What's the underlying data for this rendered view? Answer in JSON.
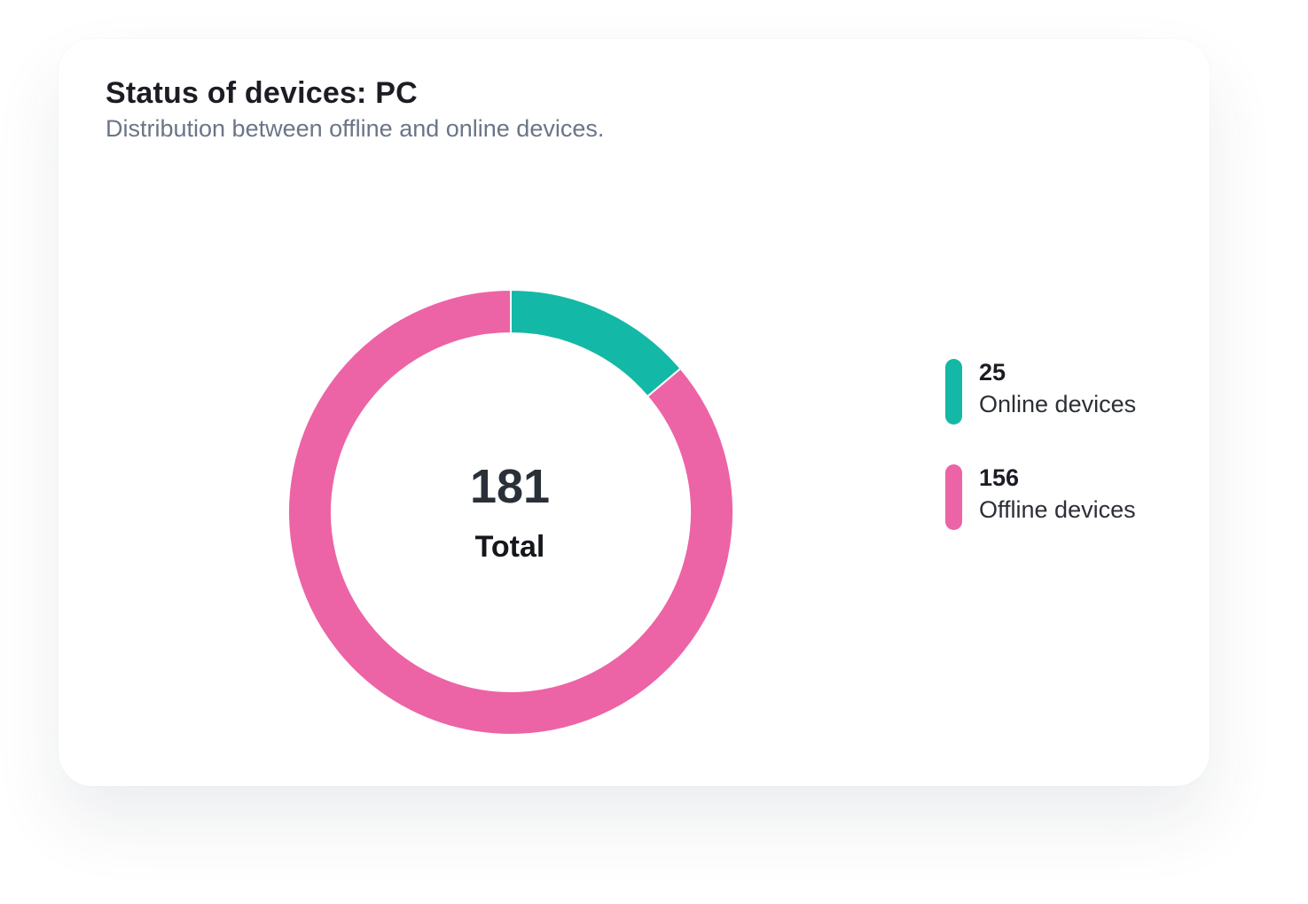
{
  "card": {
    "title": "Status of devices: PC",
    "subtitle": "Distribution between offline and online devices."
  },
  "center": {
    "total": "181",
    "label": "Total"
  },
  "legend": [
    {
      "value": "25",
      "label": "Online devices",
      "color": "#14b8a6"
    },
    {
      "value": "156",
      "label": "Offline devices",
      "color": "#ec64a5"
    }
  ],
  "chart_data": {
    "type": "pie",
    "variant": "donut",
    "title": "Status of devices: PC",
    "subtitle": "Distribution between offline and online devices.",
    "categories": [
      "Online devices",
      "Offline devices"
    ],
    "values": [
      25,
      156
    ],
    "colors": [
      "#14b8a6",
      "#ec64a5"
    ],
    "total": 181,
    "total_label": "Total",
    "legend_position": "right"
  }
}
